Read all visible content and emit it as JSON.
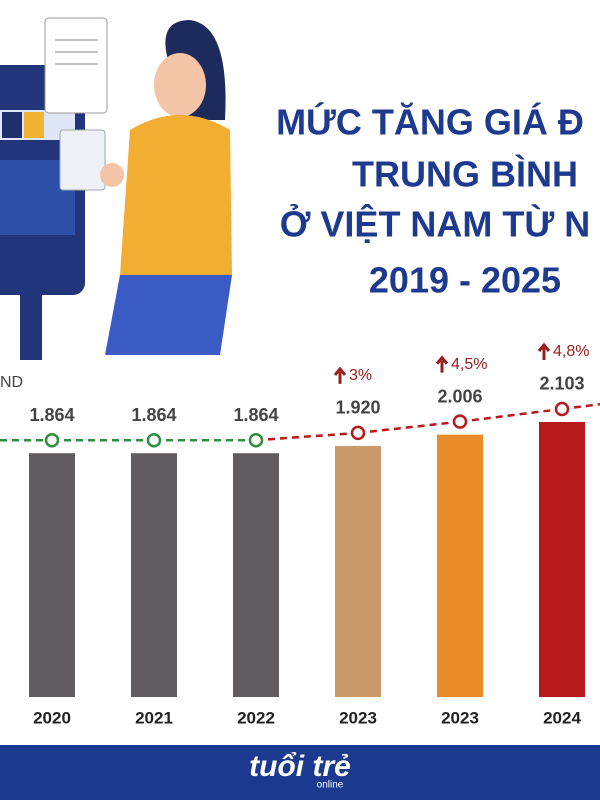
{
  "chart_data": {
    "type": "bar",
    "title_lines": [
      "MỨC TĂNG GIÁ Đ",
      "TRUNG BÌNH",
      "Ở VIỆT NAM TỪ N",
      "2019 - 2025"
    ],
    "unit": "ND",
    "categories": [
      "2020",
      "2021",
      "2022",
      "2023",
      "2023",
      "2024"
    ],
    "values": [
      1864,
      1864,
      1864,
      1920,
      2006,
      2103
    ],
    "value_labels": [
      "1.864",
      "1.864",
      "1.864",
      "1.920",
      "2.006",
      "2.103"
    ],
    "change_labels": [
      null,
      null,
      null,
      "3%",
      "4,5%",
      "4,8%"
    ],
    "colors": [
      "#5f5b5e",
      "#5f5b5e",
      "#5f5b5e",
      "#c99a6b",
      "#e98b2a",
      "#b8191c"
    ],
    "trend_colors": [
      "#2f8f3e",
      "#b8191c"
    ],
    "ylim": [
      0,
      2200
    ],
    "logo": [
      "tuổi trẻ",
      "online"
    ]
  }
}
